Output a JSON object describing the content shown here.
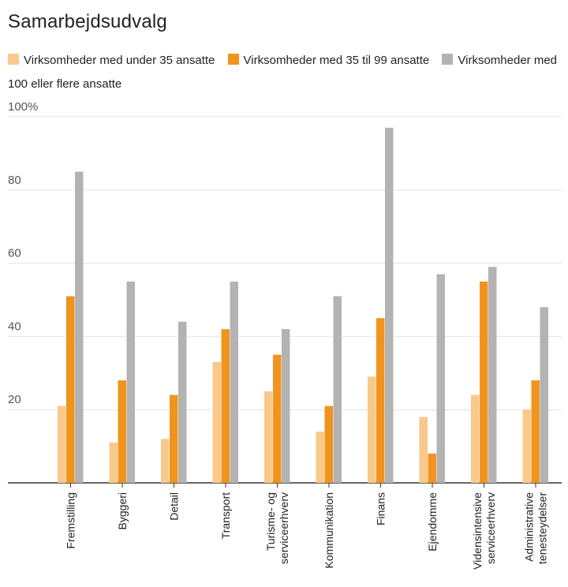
{
  "chart_data": {
    "type": "bar",
    "title": "Samarbejdsudvalg",
    "categories": [
      [
        "Fremstilling"
      ],
      [
        "Byggeri"
      ],
      [
        "Detail"
      ],
      [
        "Transport"
      ],
      [
        "Turisme- og",
        "serviceerhverv"
      ],
      [
        "Kommunikation"
      ],
      [
        "Finans"
      ],
      [
        "Ejendomme"
      ],
      [
        "Vidensintensive",
        "serviceerhverv"
      ],
      [
        "Administrative",
        "tenesteydelser"
      ]
    ],
    "series": [
      {
        "name": "Virksomheder med under 35 ansatte",
        "color": "#f8c98a",
        "values": [
          21,
          11,
          12,
          33,
          25,
          14,
          29,
          18,
          24,
          20
        ]
      },
      {
        "name": "Virksomheder med 35 til 99 ansatte",
        "color": "#f0941e",
        "values": [
          51,
          28,
          24,
          42,
          35,
          21,
          45,
          8,
          55,
          28
        ]
      },
      {
        "name": "Virksomheder med 100 eller flere ansatte",
        "color": "#b3b3b3",
        "values": [
          85,
          55,
          44,
          55,
          42,
          51,
          97,
          57,
          59,
          48
        ]
      }
    ],
    "ylim": [
      0,
      100
    ],
    "yticks": [
      {
        "value": 20,
        "label": "20"
      },
      {
        "value": 40,
        "label": "40"
      },
      {
        "value": 60,
        "label": "60"
      },
      {
        "value": 80,
        "label": "80"
      },
      {
        "value": 100,
        "label": "100%"
      }
    ],
    "grid": true,
    "legend_position": "top"
  }
}
